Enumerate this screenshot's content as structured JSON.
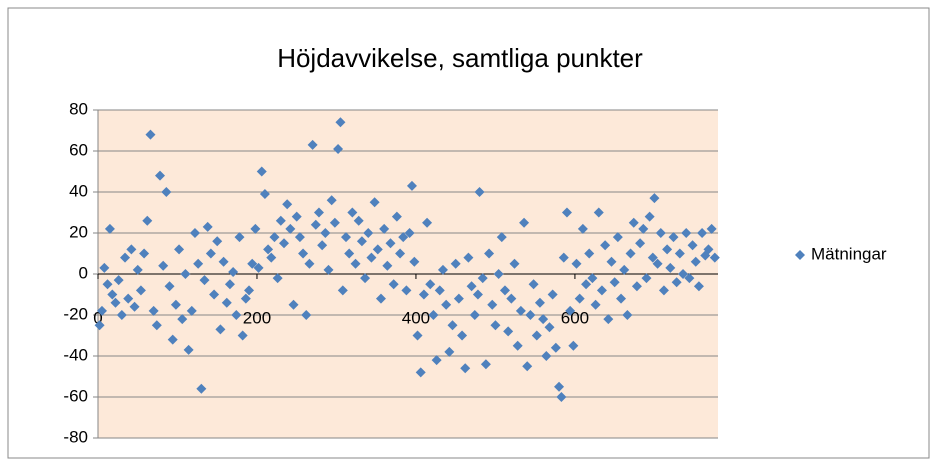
{
  "chart_data": {
    "type": "scatter",
    "title": "Höjdavvikelse, samtliga punkter",
    "x": [
      2,
      5,
      8,
      12,
      15,
      18,
      22,
      26,
      30,
      34,
      38,
      42,
      46,
      50,
      54,
      58,
      62,
      66,
      70,
      74,
      78,
      82,
      86,
      90,
      94,
      98,
      102,
      106,
      110,
      114,
      118,
      122,
      126,
      130,
      134,
      138,
      142,
      146,
      150,
      154,
      158,
      162,
      166,
      170,
      174,
      178,
      182,
      186,
      190,
      194,
      198,
      202,
      206,
      210,
      214,
      218,
      222,
      226,
      230,
      234,
      238,
      242,
      246,
      250,
      254,
      258,
      262,
      266,
      270,
      274,
      278,
      282,
      286,
      290,
      294,
      298,
      302,
      305,
      308,
      312,
      316,
      320,
      324,
      328,
      332,
      336,
      340,
      344,
      348,
      352,
      356,
      360,
      364,
      368,
      372,
      376,
      380,
      384,
      388,
      392,
      395,
      398,
      402,
      406,
      410,
      414,
      418,
      422,
      426,
      430,
      434,
      438,
      442,
      446,
      450,
      454,
      458,
      462,
      466,
      470,
      474,
      478,
      480,
      484,
      488,
      492,
      496,
      500,
      504,
      508,
      512,
      516,
      520,
      524,
      528,
      532,
      536,
      540,
      544,
      548,
      552,
      556,
      560,
      564,
      568,
      572,
      576,
      580,
      583,
      586,
      590,
      594,
      598,
      602,
      606,
      610,
      614,
      618,
      622,
      626,
      630,
      634,
      638,
      642,
      646,
      650,
      654,
      658,
      662,
      666,
      670,
      674,
      678,
      682,
      686,
      690,
      694,
      698,
      700,
      704,
      708,
      712,
      716,
      720,
      724,
      728,
      732,
      736,
      740,
      744,
      748,
      752,
      756,
      760,
      764,
      768,
      772,
      776
    ],
    "series": [
      {
        "name": "Mätningar",
        "color": "#4f81bd",
        "values": [
          -25,
          -18,
          3,
          -5,
          22,
          -10,
          -14,
          -3,
          -20,
          8,
          -12,
          12,
          -16,
          2,
          -8,
          10,
          26,
          68,
          -18,
          -25,
          48,
          4,
          40,
          -6,
          -32,
          -15,
          12,
          -22,
          0,
          -37,
          -18,
          20,
          5,
          -56,
          -3,
          23,
          10,
          -10,
          16,
          -27,
          6,
          -14,
          -5,
          1,
          -20,
          18,
          -30,
          -12,
          -8,
          5,
          22,
          3,
          50,
          39,
          12,
          8,
          18,
          -2,
          26,
          15,
          34,
          22,
          -15,
          28,
          18,
          10,
          -20,
          5,
          63,
          24,
          30,
          14,
          20,
          2,
          36,
          25,
          61,
          74,
          -8,
          18,
          10,
          30,
          5,
          26,
          16,
          -2,
          20,
          8,
          35,
          12,
          -12,
          22,
          4,
          15,
          -5,
          28,
          10,
          18,
          -8,
          20,
          43,
          6,
          -30,
          -48,
          -10,
          25,
          -5,
          -20,
          -42,
          -8,
          2,
          -15,
          -38,
          -25,
          5,
          -12,
          -30,
          -46,
          8,
          -6,
          -20,
          -10,
          40,
          -2,
          -44,
          10,
          -15,
          -25,
          0,
          18,
          -8,
          -28,
          -12,
          5,
          -35,
          -18,
          25,
          -45,
          -20,
          -5,
          -30,
          -14,
          -22,
          -40,
          -26,
          -10,
          -36,
          -55,
          -60,
          8,
          30,
          -18,
          -35,
          5,
          -12,
          22,
          -5,
          10,
          -2,
          -15,
          30,
          -8,
          14,
          -22,
          6,
          -4,
          18,
          -12,
          2,
          -20,
          10,
          25,
          -6,
          15,
          22,
          -2,
          28,
          8,
          37,
          5,
          20,
          -8,
          12,
          3,
          18,
          -4,
          10,
          0,
          20,
          -2,
          14,
          6,
          -6,
          20,
          9,
          12,
          22,
          8
        ]
      }
    ],
    "xlim": [
      0,
      780
    ],
    "xticks": [
      0,
      200,
      400,
      600
    ],
    "ylim": [
      -80,
      80
    ],
    "yticks": [
      -80,
      -60,
      -40,
      -20,
      0,
      20,
      40,
      60,
      80
    ],
    "grid": true,
    "legend": "right",
    "plot_background": "#fde9d9"
  }
}
